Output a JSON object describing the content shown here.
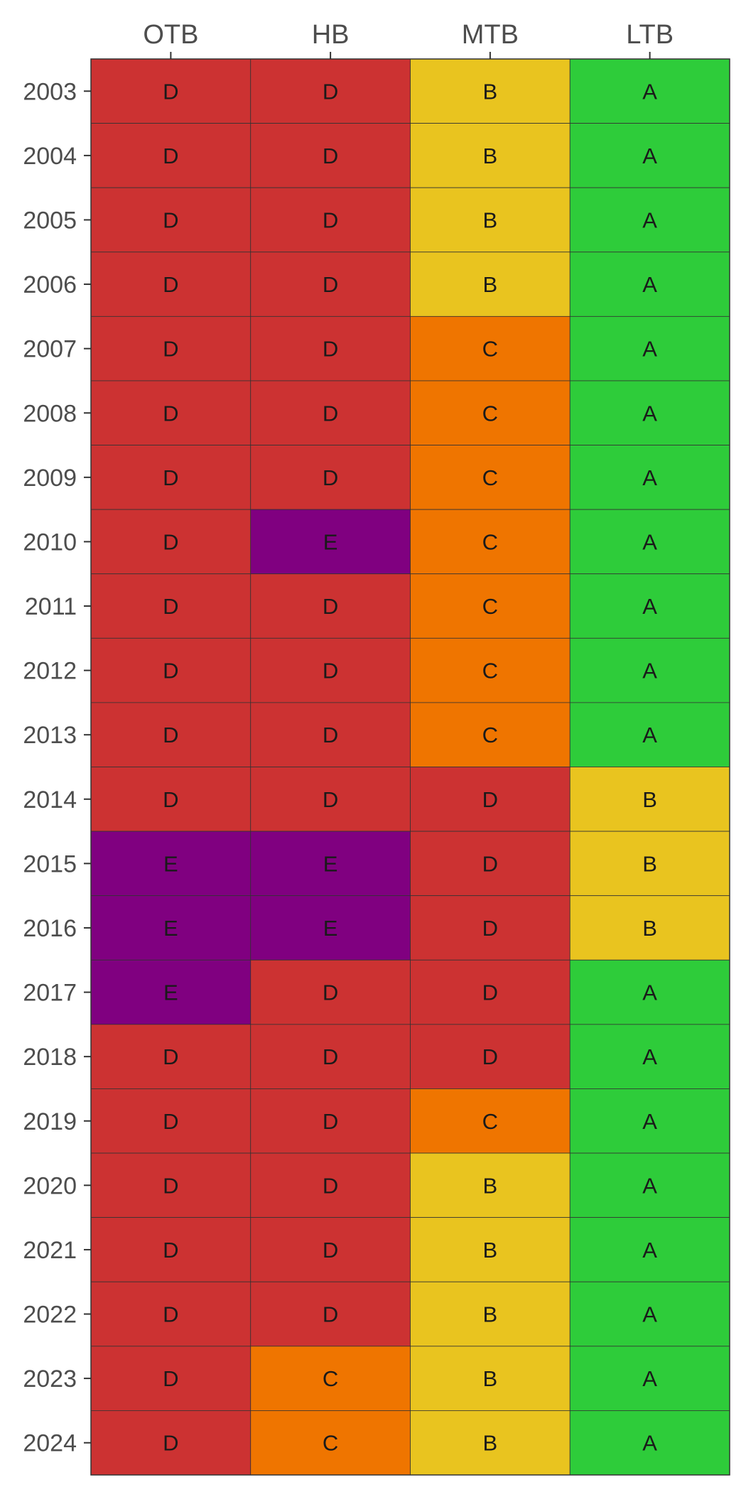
{
  "chart_data": {
    "type": "heatmap",
    "title": "",
    "xlabel": "",
    "ylabel": "",
    "columns": [
      "OTB",
      "HB",
      "MTB",
      "LTB"
    ],
    "rows": [
      "2003",
      "2004",
      "2005",
      "2006",
      "2007",
      "2008",
      "2009",
      "2010",
      "2011",
      "2012",
      "2013",
      "2014",
      "2015",
      "2016",
      "2017",
      "2018",
      "2019",
      "2020",
      "2021",
      "2022",
      "2023",
      "2024"
    ],
    "values": [
      [
        "D",
        "D",
        "B",
        "A"
      ],
      [
        "D",
        "D",
        "B",
        "A"
      ],
      [
        "D",
        "D",
        "B",
        "A"
      ],
      [
        "D",
        "D",
        "B",
        "A"
      ],
      [
        "D",
        "D",
        "C",
        "A"
      ],
      [
        "D",
        "D",
        "C",
        "A"
      ],
      [
        "D",
        "D",
        "C",
        "A"
      ],
      [
        "D",
        "E",
        "C",
        "A"
      ],
      [
        "D",
        "D",
        "C",
        "A"
      ],
      [
        "D",
        "D",
        "C",
        "A"
      ],
      [
        "D",
        "D",
        "C",
        "A"
      ],
      [
        "D",
        "D",
        "D",
        "B"
      ],
      [
        "E",
        "E",
        "D",
        "B"
      ],
      [
        "E",
        "E",
        "D",
        "B"
      ],
      [
        "E",
        "D",
        "D",
        "A"
      ],
      [
        "D",
        "D",
        "D",
        "A"
      ],
      [
        "D",
        "D",
        "C",
        "A"
      ],
      [
        "D",
        "D",
        "B",
        "A"
      ],
      [
        "D",
        "D",
        "B",
        "A"
      ],
      [
        "D",
        "D",
        "B",
        "A"
      ],
      [
        "D",
        "C",
        "B",
        "A"
      ],
      [
        "D",
        "C",
        "B",
        "A"
      ]
    ],
    "category_colors": {
      "A": "#2ecc3a",
      "B": "#e9c41f",
      "C": "#ef7500",
      "D": "#cc3232",
      "E": "#800080"
    },
    "legend": "none",
    "grid": false
  }
}
